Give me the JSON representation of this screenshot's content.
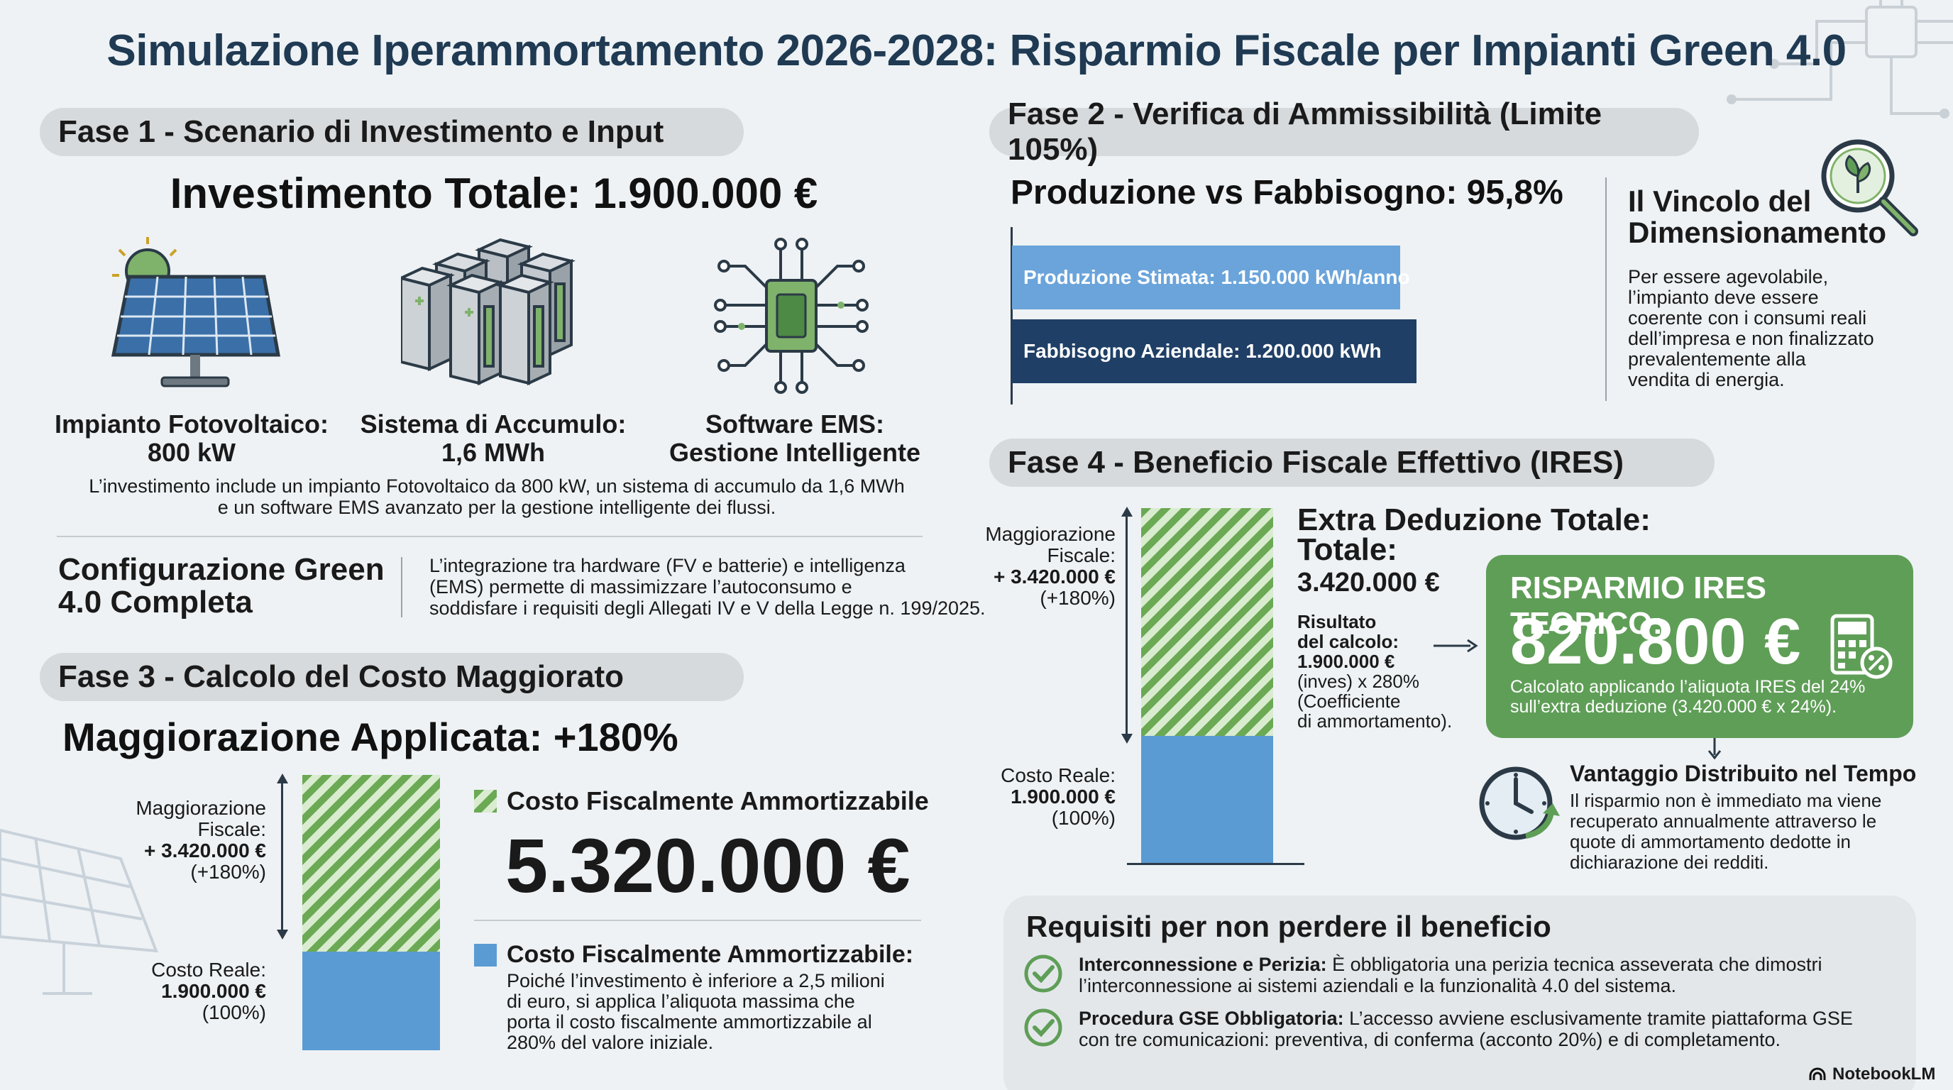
{
  "title": "Simulazione Iperammortamento 2026-2028: Risparmio Fiscale per Impianti Green 4.0",
  "fase1": {
    "header": "Fase 1 - Scenario di Investimento e Input",
    "investimento": "Investimento Totale: 1.900.000 €",
    "items": [
      {
        "line1": "Impianto Fotovoltaico:",
        "line2": "800 kW",
        "icon": "solar-panel-icon"
      },
      {
        "line1": "Sistema di Accumulo:",
        "line2": "1,6 MWh",
        "icon": "battery-storage-icon"
      },
      {
        "line1": "Software EMS:",
        "line2": "Gestione Intelligente",
        "icon": "chip-icon"
      }
    ],
    "desc1": "L’investimento include un impianto Fotovoltaico da 800 kW, un sistema di accumulo da 1,6 MWh",
    "desc2": "e un software EMS avanzato per la gestione intelligente dei flussi.",
    "config_title1": "Configurazione Green",
    "config_title2": "4.0 Completa",
    "config_text1": "L’integrazione tra hardware (FV e batterie) e intelligenza",
    "config_text2": "(EMS) permette di massimizzare l’autoconsumo e",
    "config_text3": "soddisfare i requisiti degli Allegati IV e V della Legge n. 199/2025."
  },
  "fase2": {
    "header": "Fase 2 - Verifica di Ammissibilità (Limite 105%)",
    "produzione_title": "Produzione vs Fabbisogno: 95,8%",
    "bar1": "Produzione Stimata: 1.150.000 kWh/anno",
    "bar2": "Fabbisogno Aziendale: 1.200.000 kWh",
    "bar1_value": 1150000,
    "bar2_value": 1200000,
    "vincolo_title1": "Il Vincolo del",
    "vincolo_title2": "Dimensionamento",
    "vincolo_text": [
      "Per essere agevolabile,",
      "l’impianto deve essere",
      "coerente con i consumi reali",
      "dell’impresa e non finalizzato",
      "prevalentemente alla",
      "vendita di energia."
    ]
  },
  "fase3": {
    "header": "Fase 3 - Calcolo del Costo Maggiorato",
    "maggiorazione": "Maggiorazione Applicata: +180%",
    "label_top": [
      "Maggiorazione",
      "Fiscale:",
      "+ 3.420.000 €",
      "(+180%)"
    ],
    "label_bottom": [
      "Costo Reale:",
      "1.900.000 €",
      "(100%)"
    ],
    "legend1": "Costo Fiscalmente Ammortizzabile",
    "big_value": "5.320.000 €",
    "legend2": "Costo Fiscalmente Ammortizzabile:",
    "legend2_text": [
      "Poiché l’investimento è inferiore a 2,5 milioni",
      "di euro, si applica l’aliquota massima che",
      "porta il costo fiscalmente ammortizzabile al",
      "280% del valore iniziale."
    ],
    "real_value": 1900000,
    "extra_value": 3420000
  },
  "fase4": {
    "header": "Fase 4 - Beneficio Fiscale Effettivo (IRES)",
    "label_top": [
      "Maggiorazione",
      "Fiscale:",
      "+ 3.420.000 €",
      "(+180%)"
    ],
    "label_bottom": [
      "Costo Reale:",
      "1.900.000 €",
      "(100%)"
    ],
    "extra_title1": "Extra Deduzione Totale:",
    "extra_title2": "Totale:",
    "extra_title3": "3.420.000 €",
    "risultato": [
      "Risultato",
      "del calcolo:",
      "1.900.000 €"
    ],
    "risultato_rest": [
      "(inves) x 280%",
      "(Coefficiente",
      "di ammortamento)."
    ],
    "ires_title": "RISPARMIO IRES TEORICO:",
    "ires_value": "820.800 €",
    "ires_text1": "Calcolato applicando l’aliquota IRES del 24%",
    "ires_text2": "sull’extra deduzione (3.420.000 € x 24%).",
    "vantaggio_title": "Vantaggio Distribuito nel Tempo",
    "vantaggio_text": [
      "Il risparmio non è immediato ma viene",
      "recuperato annualmente attraverso le",
      "quote di ammortamento dedotte in",
      "dichiarazione dei redditi."
    ],
    "real_value": 1900000,
    "extra_value": 3420000
  },
  "requisiti": {
    "title": "Requisiti per non perdere il beneficio",
    "items": [
      {
        "bold": "Interconnessione e Perizia:",
        "text1": " È obbligatoria una perizia tecnica asseverata che dimostri",
        "text2": "l’interconnessione ai sistemi aziendali e la funzionalità 4.0 del sistema."
      },
      {
        "bold": "Procedura GSE Obbligatoria:",
        "text1": " L’accesso avviene esclusivamente tramite piattaforma GSE",
        "text2": "con tre comunicazioni: preventiva, di conferma (acconto 20%) e di completamento."
      }
    ]
  },
  "footer": {
    "brand": "NotebookLM"
  },
  "colors": {
    "title": "#1f3a52",
    "green": "#5f9e57",
    "blue": "#5b9bd3",
    "navy": "#1f3f66",
    "pill": "#d6dadd"
  }
}
